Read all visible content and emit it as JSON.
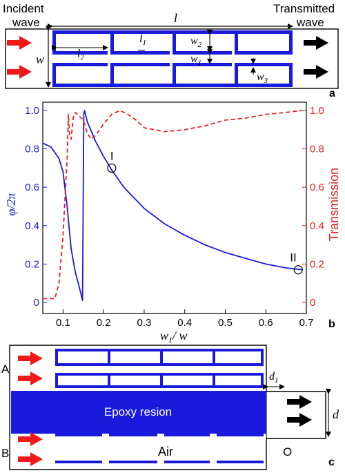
{
  "panel_a": {
    "incident_line1": "Incident",
    "incident_line2": "wave",
    "transmitted_line1": "Transmitted",
    "transmitted_line2": "wave",
    "l": "l",
    "l1": "l",
    "l1_sub": "1",
    "l2": "l",
    "l2_sub": "2",
    "w": "w",
    "w1": "w",
    "w1_sub": "1",
    "w2": "w",
    "w2_sub": "2",
    "w3": "w",
    "w3_sub": "3",
    "tag": "a",
    "colors": {
      "structure": "#1a1adc",
      "incident_arrow": "#f01818",
      "transmitted_arrow": "#000000"
    }
  },
  "panel_b": {
    "tag": "b",
    "ylabel_left": "φ/2π",
    "ylabel_right": "Transmission",
    "xlabel_main": "w",
    "xlabel_sub": "1",
    "xlabel_rest": "/ w",
    "marker_I": "I",
    "marker_II": "II",
    "x_ticks": [
      "0.1",
      "0.2",
      "0.3",
      "0.4",
      "0.5",
      "0.6",
      "0.7"
    ],
    "y_left_ticks": [
      "0",
      "0.2",
      "0.4",
      "0.6",
      "0.8",
      "1.0"
    ],
    "y_right_ticks": [
      "0",
      "0.2",
      "0.4",
      "0.6",
      "0.8",
      "1.0"
    ]
  },
  "chart_data": {
    "type": "line",
    "xlim": [
      0.05,
      0.7
    ],
    "ylim_left": [
      0,
      1.0
    ],
    "ylim_right": [
      0,
      1.0
    ],
    "series": [
      {
        "color": "#1a1adc",
        "style": "solid",
        "axis": "left",
        "x": [
          0.05,
          0.07,
          0.09,
          0.1,
          0.11,
          0.12,
          0.13,
          0.14,
          0.148,
          0.151,
          0.153,
          0.16,
          0.18,
          0.2,
          0.22,
          0.25,
          0.3,
          0.35,
          0.4,
          0.45,
          0.5,
          0.55,
          0.6,
          0.65,
          0.69
        ],
        "y": [
          0.83,
          0.81,
          0.75,
          0.68,
          0.5,
          0.28,
          0.16,
          0.08,
          0.01,
          0.98,
          1.0,
          0.94,
          0.84,
          0.76,
          0.69,
          0.6,
          0.49,
          0.41,
          0.35,
          0.3,
          0.26,
          0.23,
          0.2,
          0.18,
          0.17
        ]
      },
      {
        "color": "#e82020",
        "style": "dashed",
        "axis": "right",
        "x": [
          0.05,
          0.08,
          0.09,
          0.1,
          0.105,
          0.11,
          0.113,
          0.116,
          0.12,
          0.125,
          0.13,
          0.14,
          0.15,
          0.16,
          0.17,
          0.18,
          0.2,
          0.22,
          0.24,
          0.26,
          0.28,
          0.3,
          0.35,
          0.4,
          0.45,
          0.5,
          0.55,
          0.6,
          0.65,
          0.69
        ],
        "y": [
          0.02,
          0.02,
          0.1,
          0.35,
          0.55,
          0.75,
          0.98,
          0.88,
          0.85,
          0.96,
          0.99,
          0.97,
          0.95,
          0.88,
          0.85,
          0.87,
          0.93,
          0.98,
          1.0,
          0.98,
          0.95,
          0.91,
          0.89,
          0.9,
          0.92,
          0.95,
          0.96,
          0.98,
          0.99,
          1.0
        ]
      }
    ],
    "markers": [
      {
        "label": "I",
        "x": 0.22,
        "y": 0.7
      },
      {
        "label": "II",
        "x": 0.68,
        "y": 0.17
      }
    ]
  },
  "panel_c": {
    "tag": "c",
    "A": "A",
    "B": "B",
    "O": "O",
    "d": "d",
    "d1": "d",
    "d1_sub": "1",
    "epoxy": "Epoxy resion",
    "air": "Air",
    "colors": {
      "epoxy": "#1a1adc"
    }
  }
}
